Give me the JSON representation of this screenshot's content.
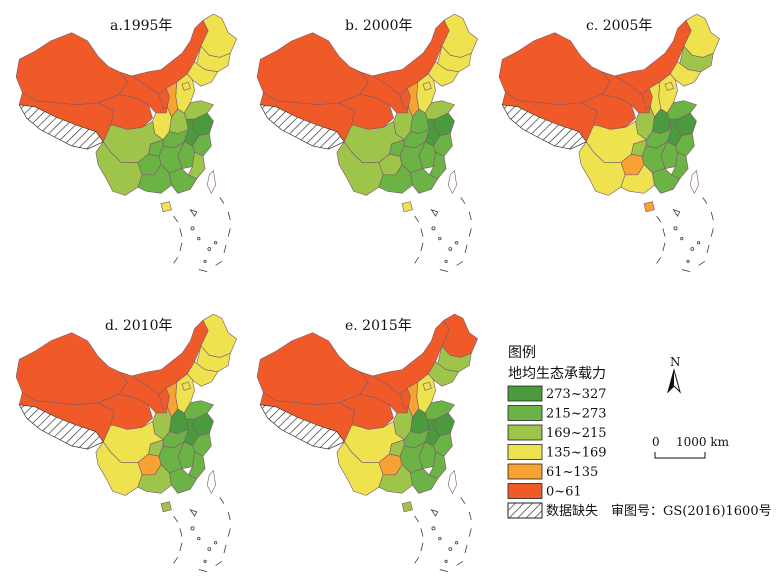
{
  "panels": [
    {
      "title": "a.1995年",
      "missing": "#ffffff",
      "colors": {
        "xinjiang": "#f05a28",
        "tibet": "#f05a28",
        "qinghai": "#f05a28",
        "gansu": "#f05a28",
        "innermongolia": "#f05a28",
        "ningxia": "#f05a28",
        "heilongjiang": "#eee34f",
        "jilin": "#eee34f",
        "liaoning": "#eee34f",
        "shanxi": "#f7a233",
        "hebei": "#eee34f",
        "beijing": "#eee34f",
        "shandong": "#9ec54a",
        "henan": "#9ec54a",
        "shaanxi": "#eee34f",
        "sichuan": "#9ec54a",
        "yunnan": "#9ec54a",
        "guizhou": "#6bb344",
        "chongqing": "#6bb344",
        "hubei": "#6bb344",
        "hunan": "#6bb344",
        "jiangxi": "#6bb344",
        "anhui": "#4c9a3e",
        "jiangsu": "#4c9a3e",
        "zhejiang": "#6bb344",
        "fujian": "#9ec54a",
        "guangxi": "#6bb344",
        "guangdong": "#6bb344",
        "hainan": "#eee34f",
        "taiwan": "#ffffff"
      }
    },
    {
      "title": "b. 2000年",
      "colors": {
        "xinjiang": "#f05a28",
        "tibet": "#f05a28",
        "qinghai": "#f05a28",
        "gansu": "#f05a28",
        "innermongolia": "#f05a28",
        "ningxia": "#f05a28",
        "heilongjiang": "#eee34f",
        "jilin": "#eee34f",
        "liaoning": "#eee34f",
        "shanxi": "#f7a233",
        "hebei": "#eee34f",
        "beijing": "#eee34f",
        "shandong": "#9ec54a",
        "henan": "#6bb344",
        "shaanxi": "#9ec54a",
        "sichuan": "#9ec54a",
        "yunnan": "#9ec54a",
        "guizhou": "#9ec54a",
        "chongqing": "#6bb344",
        "hubei": "#6bb344",
        "hunan": "#6bb344",
        "jiangxi": "#6bb344",
        "anhui": "#4c9a3e",
        "jiangsu": "#4c9a3e",
        "zhejiang": "#6bb344",
        "fujian": "#6bb344",
        "guangxi": "#6bb344",
        "guangdong": "#6bb344",
        "hainan": "#eee34f",
        "taiwan": "#ffffff"
      }
    },
    {
      "title": "c. 2005年",
      "colors": {
        "xinjiang": "#f05a28",
        "tibet": "#f05a28",
        "qinghai": "#f05a28",
        "gansu": "#f05a28",
        "innermongolia": "#f05a28",
        "ningxia": "#f05a28",
        "heilongjiang": "#eee34f",
        "jilin": "#9ec54a",
        "liaoning": "#eee34f",
        "shanxi": "#eee34f",
        "hebei": "#eee34f",
        "beijing": "#eee34f",
        "shandong": "#6bb344",
        "henan": "#4c9a3e",
        "shaanxi": "#9ec54a",
        "sichuan": "#eee34f",
        "yunnan": "#eee34f",
        "guizhou": "#f7a233",
        "chongqing": "#9ec54a",
        "hubei": "#6bb344",
        "hunan": "#6bb344",
        "jiangxi": "#6bb344",
        "anhui": "#4c9a3e",
        "jiangsu": "#4c9a3e",
        "zhejiang": "#6bb344",
        "fujian": "#6bb344",
        "guangxi": "#eee34f",
        "guangdong": "#6bb344",
        "hainan": "#f7a233",
        "taiwan": "#ffffff"
      }
    },
    {
      "title": "d. 2010年",
      "colors": {
        "xinjiang": "#f05a28",
        "tibet": "#f05a28",
        "qinghai": "#f05a28",
        "gansu": "#f05a28",
        "innermongolia": "#f05a28",
        "ningxia": "#f05a28",
        "heilongjiang": "#eee34f",
        "jilin": "#eee34f",
        "liaoning": "#eee34f",
        "shanxi": "#f7a233",
        "hebei": "#eee34f",
        "beijing": "#eee34f",
        "shandong": "#6bb344",
        "henan": "#4c9a3e",
        "shaanxi": "#9ec54a",
        "sichuan": "#eee34f",
        "yunnan": "#eee34f",
        "guizhou": "#f7a233",
        "chongqing": "#9ec54a",
        "hubei": "#6bb344",
        "hunan": "#6bb344",
        "jiangxi": "#6bb344",
        "anhui": "#4c9a3e",
        "jiangsu": "#4c9a3e",
        "zhejiang": "#6bb344",
        "fujian": "#6bb344",
        "guangxi": "#9ec54a",
        "guangdong": "#6bb344",
        "hainan": "#9ec54a",
        "taiwan": "#ffffff"
      }
    },
    {
      "title": "e. 2015年",
      "colors": {
        "xinjiang": "#f05a28",
        "tibet": "#f05a28",
        "qinghai": "#f05a28",
        "gansu": "#f05a28",
        "innermongolia": "#f05a28",
        "ningxia": "#f05a28",
        "heilongjiang": "#f05a28",
        "jilin": "#9ec54a",
        "liaoning": "#9ec54a",
        "shanxi": "#f7a233",
        "hebei": "#eee34f",
        "beijing": "#eee34f",
        "shandong": "#6bb344",
        "henan": "#4c9a3e",
        "shaanxi": "#9ec54a",
        "sichuan": "#eee34f",
        "yunnan": "#eee34f",
        "guizhou": "#f7a233",
        "chongqing": "#9ec54a",
        "hubei": "#6bb344",
        "hunan": "#6bb344",
        "jiangxi": "#6bb344",
        "anhui": "#4c9a3e",
        "jiangsu": "#4c9a3e",
        "zhejiang": "#6bb344",
        "fujian": "#6bb344",
        "guangxi": "#9ec54a",
        "guangdong": "#6bb344",
        "hainan": "#9ec54a",
        "taiwan": "#ffffff"
      }
    }
  ],
  "legend": {
    "title": "图例",
    "subtitle": "地均生态承载力",
    "items": [
      {
        "label": "273~327",
        "color": "#4c9a3e"
      },
      {
        "label": "215~273",
        "color": "#6bb344"
      },
      {
        "label": "169~215",
        "color": "#9ec54a"
      },
      {
        "label": "135~169",
        "color": "#eee34f"
      },
      {
        "label": "61~135",
        "color": "#f7a233"
      },
      {
        "label": "0~61",
        "color": "#f05a28"
      }
    ],
    "missing_label": "数据缺失"
  },
  "north_label": "N",
  "scale": {
    "zero": "0",
    "label": "1000 km"
  },
  "approval": "审图号：GS(2016)1600号",
  "border_color": "#7f5a6e"
}
